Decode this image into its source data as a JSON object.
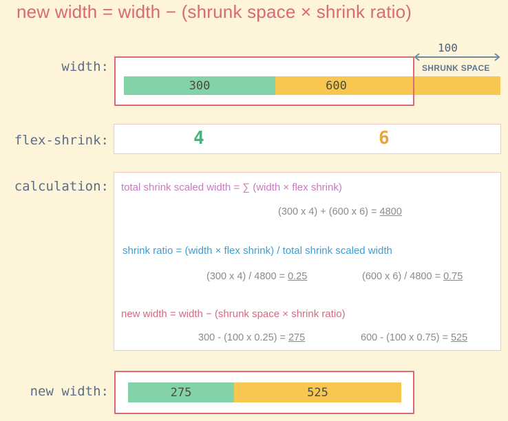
{
  "title": "new width  =  width  −  (shrunk space  ×  shrink ratio)",
  "labels": {
    "width": "width:",
    "flex_shrink": "flex-shrink:",
    "calculation": "calculation:",
    "new_width": "new width:"
  },
  "width_row": {
    "item1": "300",
    "item2": "600"
  },
  "shrunk_space": {
    "value": "100",
    "label": "SHRUNK SPACE"
  },
  "flex_shrink": {
    "item1": "4",
    "item2": "6"
  },
  "calc": {
    "total_formula": "total shrink scaled width  =  ∑ (width  ×  flex shrink)",
    "total_calc_prefix": "(300 x 4) + (600 x 6) = ",
    "total_calc_result": "4800",
    "ratio_formula": "shrink ratio  =  (width  ×  flex shrink)  /  total shrink scaled width",
    "ratio1_prefix": "(300 x 4) / 4800 = ",
    "ratio1_result": "0.25",
    "ratio2_prefix": "(600 x 6) / 4800 = ",
    "ratio2_result": "0.75",
    "new_formula": "new width  =  width  −  (shrunk space  ×  shrink ratio)",
    "new1_prefix": "300 - (100 x 0.25) = ",
    "new1_result": "275",
    "new2_prefix": "600 - (100 x 0.75) = ",
    "new2_result": "525"
  },
  "new_width_row": {
    "item1": "275",
    "item2": "525"
  },
  "colors": {
    "green": "#84d3a8",
    "yellow": "#f8c752",
    "red_frame": "#de6b73",
    "title": "#db6878",
    "shrink_green": "#4fae7f",
    "shrink_yellow": "#e6a73a"
  }
}
